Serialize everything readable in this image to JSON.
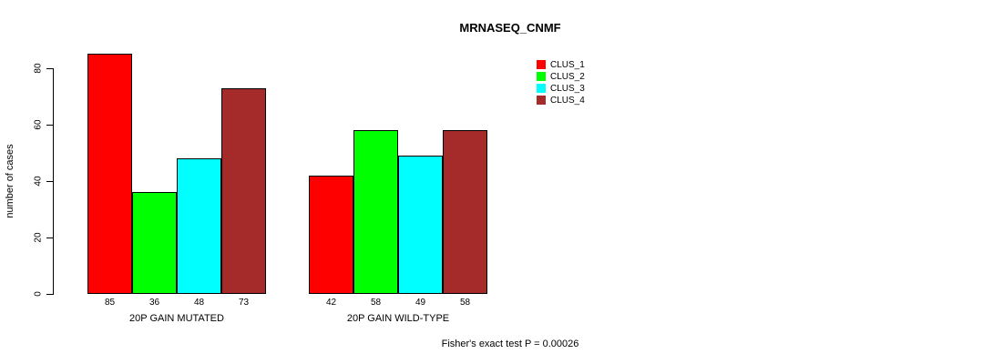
{
  "title": "MRNASEQ_CNMF",
  "footer": {
    "annotation": "Fisher's exact test P = 0.00026"
  },
  "colors": {
    "clus_1": "#FF0000",
    "clus_2": "#00FF00",
    "clus_3": "#00FFFF",
    "clus_4": "#A52A2A",
    "axis": "#000000",
    "background": "#FFFFFF"
  },
  "legend": {
    "position": "top-right",
    "entries": [
      {
        "label": "CLUS_1",
        "color": "#FF0000"
      },
      {
        "label": "CLUS_2",
        "color": "#00FF00"
      },
      {
        "label": "CLUS_3",
        "color": "#00FFFF"
      },
      {
        "label": "CLUS_4",
        "color": "#A52A2A"
      }
    ]
  },
  "chart_data": {
    "type": "bar",
    "title": "MRNASEQ_CNMF",
    "xlabel": "",
    "ylabel": "number of cases",
    "ylim": [
      0,
      85
    ],
    "yticks": [
      0,
      20,
      40,
      60,
      80
    ],
    "grid": false,
    "bar_value_labels": true,
    "legend_position": "top-right",
    "categories": [
      "20P GAIN MUTATED",
      "20P GAIN WILD-TYPE"
    ],
    "series": [
      {
        "name": "CLUS_1",
        "color": "#FF0000",
        "values": [
          85,
          42
        ]
      },
      {
        "name": "CLUS_2",
        "color": "#00FF00",
        "values": [
          36,
          58
        ]
      },
      {
        "name": "CLUS_3",
        "color": "#00FFFF",
        "values": [
          48,
          49
        ]
      },
      {
        "name": "CLUS_4",
        "color": "#A52A2A",
        "values": [
          73,
          58
        ]
      }
    ],
    "annotation": "Fisher's exact test P = 0.00026"
  }
}
